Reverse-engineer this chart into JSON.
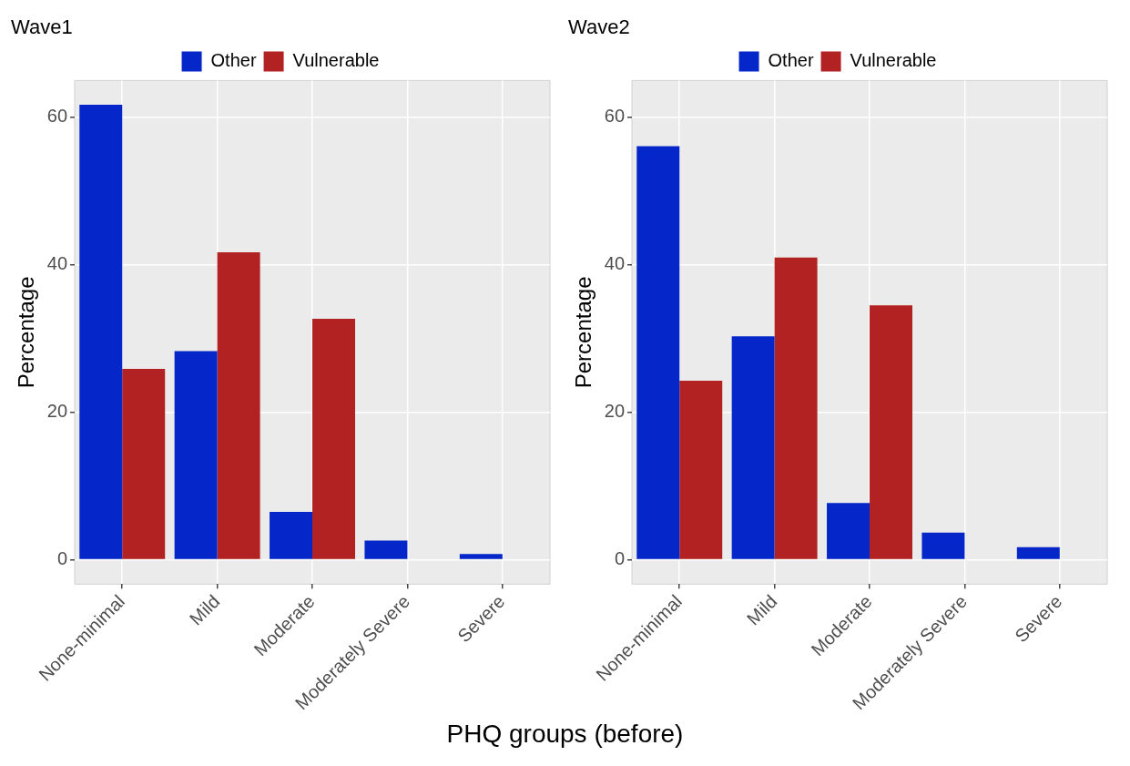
{
  "chart_data": [
    {
      "type": "bar",
      "title": "Wave1",
      "xlabel": "PHQ groups (before)",
      "ylabel": "Percentage",
      "categories": [
        "None-minimal",
        "Mild",
        "Moderate",
        "Moderately Severe",
        "Severe"
      ],
      "series": [
        {
          "name": "Other",
          "color": "#0527c9",
          "values": [
            61.7,
            28.3,
            6.5,
            2.6,
            0.8
          ]
        },
        {
          "name": "Vulnerable",
          "color": "#b22222",
          "values": [
            25.9,
            41.7,
            32.7,
            0,
            0
          ]
        }
      ],
      "ylim": [
        -3.3,
        65
      ],
      "yticks": [
        0,
        20,
        40,
        60
      ],
      "grid": true,
      "legend": "top"
    },
    {
      "type": "bar",
      "title": "Wave2",
      "ylabel": "Percentage",
      "categories": [
        "None-minimal",
        "Mild",
        "Moderate",
        "Moderately Severe",
        "Severe"
      ],
      "series": [
        {
          "name": "Other",
          "color": "#0527c9",
          "values": [
            56.1,
            30.3,
            7.7,
            3.7,
            1.7
          ]
        },
        {
          "name": "Vulnerable",
          "color": "#b22222",
          "values": [
            24.3,
            41.0,
            34.5,
            0,
            0
          ]
        }
      ],
      "ylim": [
        -3.3,
        65
      ],
      "yticks": [
        0,
        20,
        40,
        60
      ],
      "grid": true,
      "legend": "top"
    }
  ]
}
